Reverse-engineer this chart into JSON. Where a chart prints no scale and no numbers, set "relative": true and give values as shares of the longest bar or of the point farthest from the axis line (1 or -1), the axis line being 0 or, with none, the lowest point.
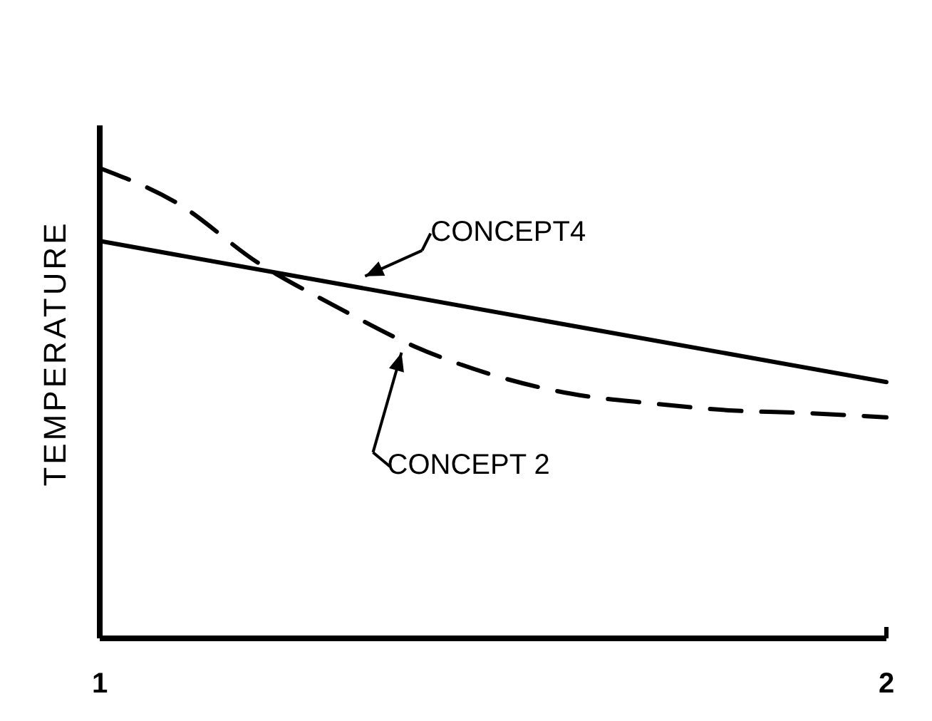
{
  "chart_data": {
    "type": "line",
    "relative": true,
    "ylabel": "TEMPERATURE",
    "xlim": [
      1,
      2
    ],
    "xticks": [
      1,
      2
    ],
    "legend": "center",
    "series": [
      {
        "name": "CONCEPT4",
        "color": "#000000",
        "line_style": "solid",
        "x": [
          1,
          2
        ],
        "values": [
          0.845,
          0.545
        ]
      },
      {
        "name": "CONCEPT 2",
        "color": "#000000",
        "line_style": "dashed",
        "x": [
          1,
          1.1,
          1.2,
          1.3,
          1.4,
          1.5,
          1.6,
          1.7,
          1.8,
          1.9,
          2
        ],
        "values": [
          1,
          0.924,
          0.8,
          0.706,
          0.621,
          0.56,
          0.52,
          0.5,
          0.485,
          0.479,
          0.47
        ]
      }
    ]
  }
}
